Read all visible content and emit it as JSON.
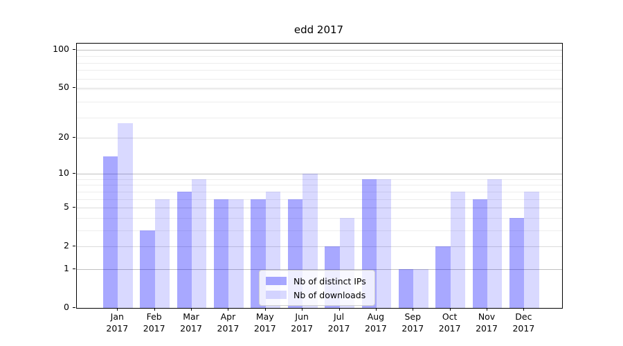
{
  "chart_data": {
    "type": "bar",
    "title": "edd 2017",
    "categories": [
      "Jan 2017",
      "Feb 2017",
      "Mar 2017",
      "Apr 2017",
      "May 2017",
      "Jun 2017",
      "Jul 2017",
      "Aug 2017",
      "Sep 2017",
      "Oct 2017",
      "Nov 2017",
      "Dec 2017"
    ],
    "series": [
      {
        "name": "Nb of distinct IPs",
        "color": "#0000FF57",
        "values": [
          14,
          3,
          7,
          6,
          6,
          6,
          2,
          9,
          1,
          2,
          6,
          4
        ]
      },
      {
        "name": "Nb of downloads",
        "color": "#0000FF26",
        "values": [
          26,
          6,
          9,
          6,
          7,
          10,
          4,
          9,
          1,
          7,
          9,
          7
        ]
      }
    ],
    "yscale": "log10(1+y)",
    "yticks": [
      0,
      1,
      2,
      5,
      10,
      20,
      50,
      100
    ],
    "decade_gridline_values": [
      1,
      10,
      100
    ],
    "minor_gridline_values": [
      3,
      4,
      6,
      7,
      8,
      9,
      29,
      39,
      49,
      59,
      69,
      79,
      89
    ],
    "ylim": [
      0,
      111.5
    ],
    "grid": true,
    "legend_position": "lower center",
    "colors": {
      "decade_gridline": "#c0c0c0",
      "major_gridline": "#dbdbdb",
      "minor_gridline": "#ededed",
      "spine": "#000000",
      "text": "#000000"
    }
  }
}
